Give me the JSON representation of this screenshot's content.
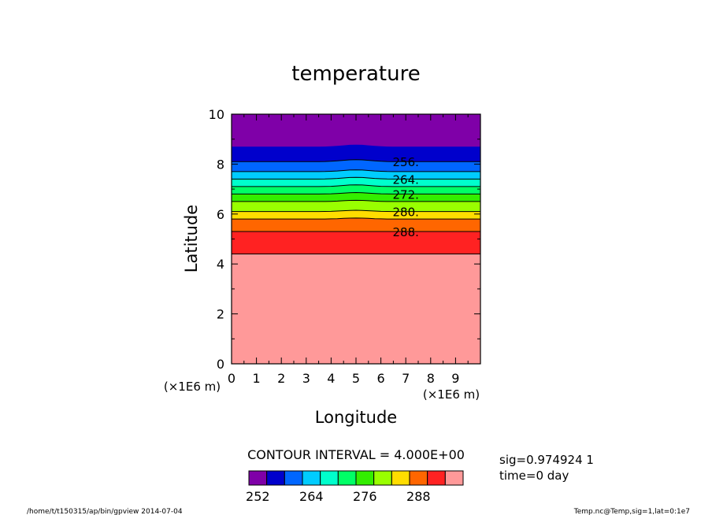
{
  "chart_data": {
    "type": "contour",
    "title": "temperature",
    "xlabel": "Longitude",
    "ylabel": "Latitude",
    "x_unit_label": "(×1E6 m)",
    "y_unit_label": "(×1E6 m)",
    "xlim": [
      0,
      10
    ],
    "ylim": [
      0,
      10
    ],
    "x_ticks": [
      "0",
      "1",
      "2",
      "3",
      "4",
      "5",
      "6",
      "7",
      "8",
      "9"
    ],
    "y_ticks": [
      "0",
      "2",
      "4",
      "6",
      "8",
      "10"
    ],
    "bands": [
      {
        "y_top": 10.0,
        "y_bottom": 8.7,
        "bump": 0.08,
        "color": "#7f00a8"
      },
      {
        "y_top": 8.7,
        "y_bottom": 8.1,
        "bump": 0.08,
        "color": "#0000cc"
      },
      {
        "y_top": 8.1,
        "y_bottom": 7.7,
        "bump": 0.07,
        "color": "#0066ff"
      },
      {
        "y_top": 7.7,
        "y_bottom": 7.4,
        "bump": 0.07,
        "color": "#00ccff"
      },
      {
        "y_top": 7.4,
        "y_bottom": 7.1,
        "bump": 0.07,
        "color": "#00ffcc"
      },
      {
        "y_top": 7.1,
        "y_bottom": 6.8,
        "bump": 0.06,
        "color": "#00ff66"
      },
      {
        "y_top": 6.8,
        "y_bottom": 6.5,
        "bump": 0.06,
        "color": "#33ee00"
      },
      {
        "y_top": 6.5,
        "y_bottom": 6.1,
        "bump": 0.05,
        "color": "#99ff00"
      },
      {
        "y_top": 6.1,
        "y_bottom": 5.8,
        "bump": 0.05,
        "color": "#ffdd00"
      },
      {
        "y_top": 5.8,
        "y_bottom": 5.3,
        "bump": 0.04,
        "color": "#ff6600"
      },
      {
        "y_top": 5.3,
        "y_bottom": 4.4,
        "bump": 0.0,
        "color": "#ff2222"
      },
      {
        "y_top": 4.4,
        "y_bottom": 0.0,
        "bump": 0.0,
        "color": "#ff9999"
      }
    ],
    "contour_lines": [
      {
        "value": "256.",
        "y": 8.1,
        "bump": 0.08,
        "labeled": true
      },
      {
        "value": "",
        "y": 7.7,
        "bump": 0.07,
        "labeled": false
      },
      {
        "value": "264.",
        "y": 7.4,
        "bump": 0.07,
        "labeled": true
      },
      {
        "value": "",
        "y": 7.1,
        "bump": 0.07,
        "labeled": false
      },
      {
        "value": "272.",
        "y": 6.8,
        "bump": 0.06,
        "labeled": true
      },
      {
        "value": "",
        "y": 6.5,
        "bump": 0.05,
        "labeled": false
      },
      {
        "value": "280.",
        "y": 6.1,
        "bump": 0.05,
        "labeled": true
      },
      {
        "value": "",
        "y": 5.8,
        "bump": 0.04,
        "labeled": false
      },
      {
        "value": "288.",
        "y": 5.3,
        "bump": 0.0,
        "labeled": true
      },
      {
        "value": "",
        "y": 4.4,
        "bump": 0.0,
        "labeled": false
      }
    ],
    "colorbar": {
      "colors": [
        "#7f00a8",
        "#0000cc",
        "#0066ff",
        "#00ccff",
        "#00ffcc",
        "#00ff66",
        "#33ee00",
        "#99ff00",
        "#ffdd00",
        "#ff6600",
        "#ff2222",
        "#ff9999"
      ],
      "labels": [
        "252",
        "264",
        "276",
        "288"
      ]
    },
    "contour_interval": "CONTOUR INTERVAL = 4.000E+00",
    "sig_info": "sig=0.974924 1",
    "time_info": "time=0 day"
  },
  "footer": {
    "left": "/home/t/t150315/ap/bin/gpview  2014-07-04",
    "right": "Temp.nc@Temp,sig=1,lat=0:1e7"
  }
}
